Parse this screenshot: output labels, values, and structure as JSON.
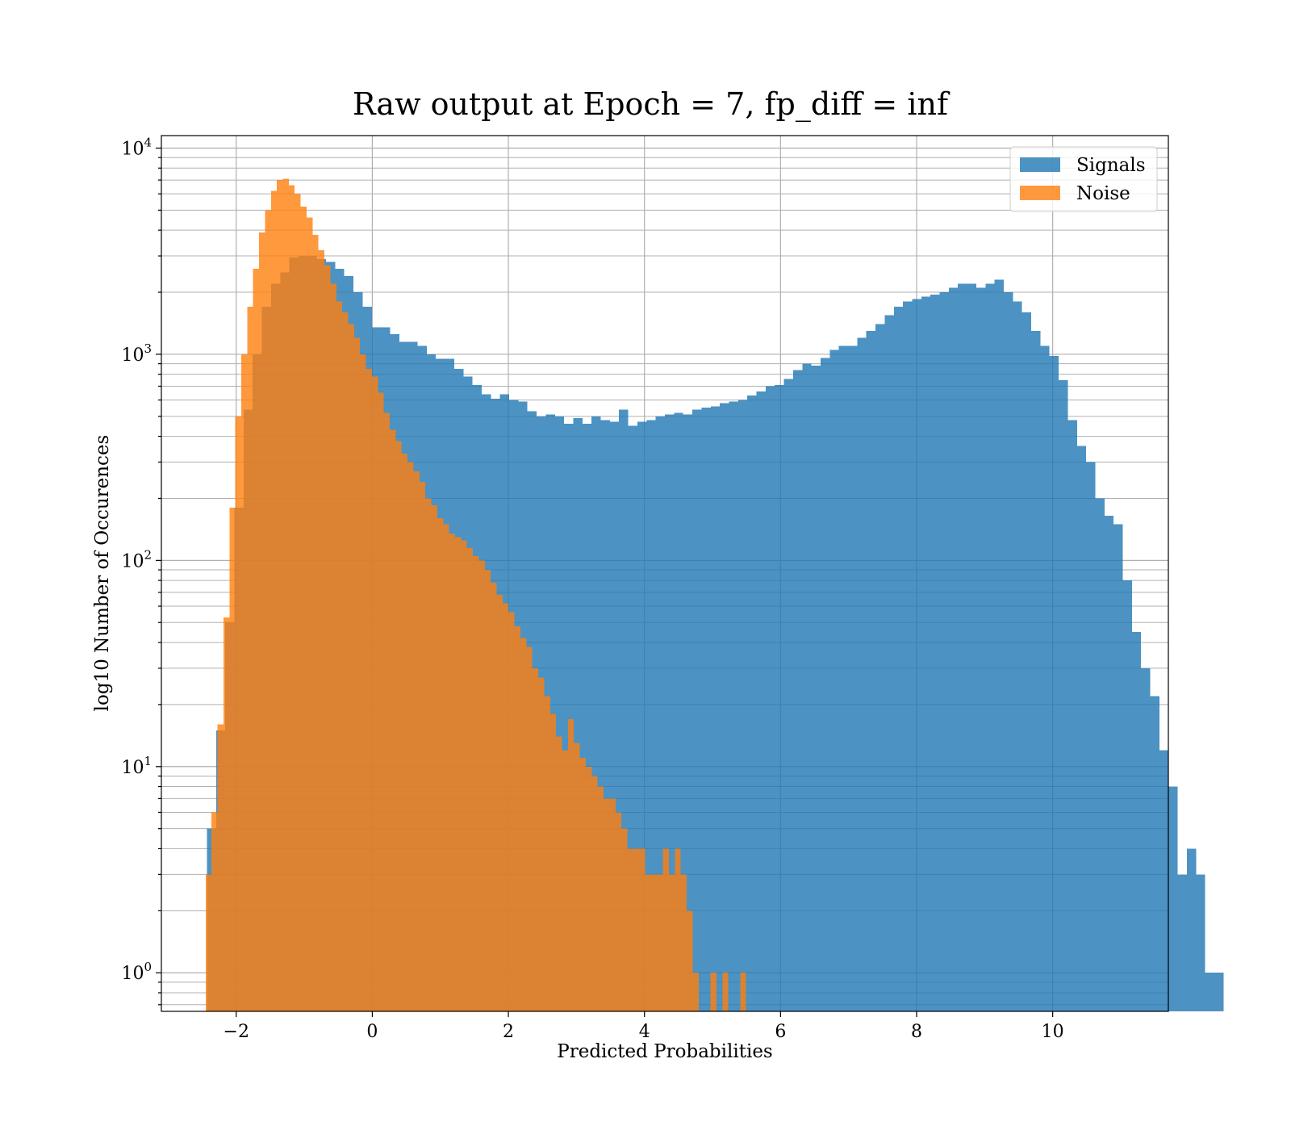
{
  "chart_data": {
    "type": "histogram",
    "title": "Raw output at Epoch = 7, fp_diff = inf",
    "xlabel": "Predicted Probabilities",
    "ylabel": "log10 Number of Occurences",
    "xlim": [
      -3.1,
      11.7
    ],
    "ylim": [
      0.65,
      11500
    ],
    "yscale": "log",
    "x_ticks": [
      -2,
      0,
      2,
      4,
      6,
      8,
      10
    ],
    "x_tick_labels": [
      "−2",
      "0",
      "2",
      "4",
      "6",
      "8",
      "10"
    ],
    "y_tick_labels": [
      {
        "base": "10",
        "exp": "0",
        "value": 1
      },
      {
        "base": "10",
        "exp": "1",
        "value": 10
      },
      {
        "base": "10",
        "exp": "2",
        "value": 100
      },
      {
        "base": "10",
        "exp": "3",
        "value": 1000
      },
      {
        "base": "10",
        "exp": "4",
        "value": 10000
      }
    ],
    "grid": true,
    "legend_position": "top-right",
    "series": [
      {
        "name": "Signals",
        "color": "#1f77b4",
        "opacity": 0.8,
        "bin_start": -2.43,
        "bin_width": 0.1346,
        "values": [
          5,
          15,
          50,
          180,
          540,
          1000,
          1700,
          2200,
          2500,
          2950,
          3000,
          3000,
          2900,
          2800,
          2600,
          2400,
          2000,
          1700,
          1350,
          1350,
          1250,
          1150,
          1150,
          1100,
          1000,
          950,
          950,
          850,
          780,
          710,
          640,
          610,
          640,
          600,
          590,
          530,
          500,
          510,
          500,
          460,
          490,
          460,
          500,
          480,
          470,
          540,
          450,
          470,
          480,
          500,
          510,
          520,
          510,
          540,
          550,
          560,
          580,
          590,
          600,
          630,
          660,
          700,
          710,
          760,
          840,
          900,
          880,
          960,
          1050,
          1100,
          1100,
          1200,
          1300,
          1400,
          1550,
          1700,
          1800,
          1850,
          1900,
          1950,
          2000,
          2100,
          2200,
          2200,
          2100,
          2200,
          2300,
          2000,
          1800,
          1600,
          1300,
          1100,
          980,
          750,
          480,
          360,
          300,
          200,
          165,
          150,
          80,
          45,
          30,
          22,
          12,
          8,
          3,
          4,
          3,
          1,
          1
        ]
      },
      {
        "name": "Noise",
        "color": "#ff7f0e",
        "opacity": 0.8,
        "bin_start": -2.45,
        "bin_width": 0.0873,
        "values": [
          3,
          6,
          16,
          53,
          180,
          500,
          1000,
          1700,
          2600,
          3900,
          5000,
          6200,
          7000,
          7100,
          6600,
          6000,
          5200,
          4600,
          3800,
          3200,
          2700,
          2200,
          1800,
          1600,
          1400,
          1200,
          1000,
          850,
          780,
          650,
          520,
          430,
          380,
          330,
          300,
          270,
          240,
          200,
          185,
          160,
          150,
          135,
          130,
          125,
          115,
          105,
          100,
          90,
          78,
          68,
          62,
          56,
          48,
          42,
          38,
          30,
          27,
          22,
          18,
          14,
          12,
          17,
          13,
          11,
          10,
          9,
          8,
          7,
          7,
          6,
          5,
          4,
          4,
          4,
          3,
          3,
          3,
          4,
          3,
          4,
          3,
          2,
          1,
          0.5,
          0.5,
          1,
          0.5,
          1,
          0.5,
          0.5,
          1,
          0.5,
          0.5,
          0.5,
          0.5,
          0.5,
          0.5,
          0.5,
          0.5,
          0.5,
          0.5,
          0.5,
          0.5,
          0.5,
          0.5,
          0.5,
          0.5,
          0.5,
          0.5,
          0.5
        ]
      }
    ]
  }
}
